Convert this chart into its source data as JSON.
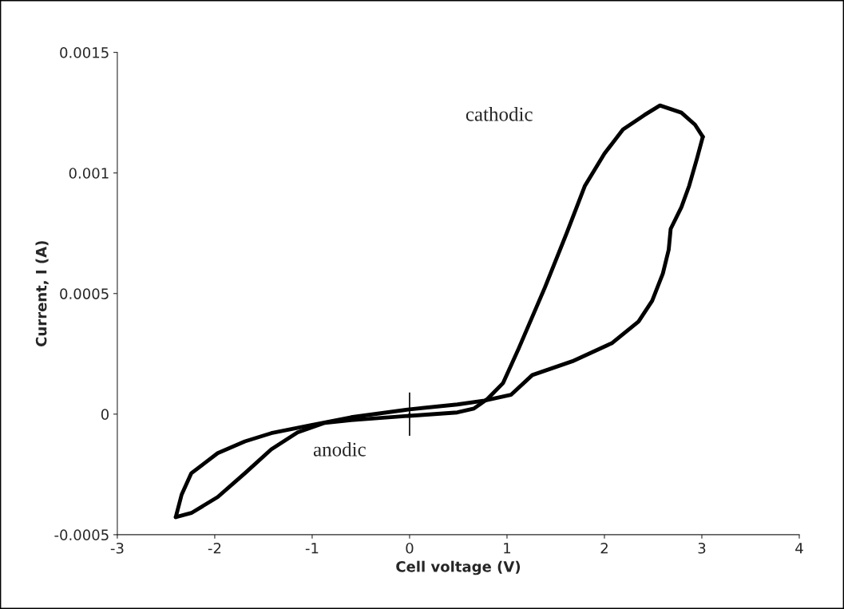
{
  "chart_data": {
    "type": "line",
    "xlabel": "Cell voltage (V)",
    "ylabel": "Current, I (A)",
    "xlim": [
      -3,
      4
    ],
    "xticks": [
      -3,
      -2,
      -1,
      0,
      1,
      2,
      3,
      4
    ],
    "ylim": [
      -0.0005,
      0.0015
    ],
    "yticks": [
      {
        "value": -0.0005,
        "label": "-0.0005"
      },
      {
        "value": 0,
        "label": "0"
      },
      {
        "value": 0.0005,
        "label": "0.0005"
      },
      {
        "value": 0.001,
        "label": "0.001"
      },
      {
        "value": 0.0015,
        "label": "0.0015"
      }
    ],
    "grid": false,
    "marker": "none",
    "line_style": "solid",
    "series": [
      {
        "color": "#000000",
        "x": [
          -2.4,
          -2.34,
          -2.24,
          -2.1,
          -1.97,
          -1.69,
          -1.42,
          -1.01,
          -0.6,
          0.0,
          0.49,
          0.77,
          1.04,
          1.26,
          1.67,
          2.08,
          2.35,
          2.49,
          2.6,
          2.66,
          2.68,
          2.79,
          2.87,
          2.95,
          3.01
        ],
        "values": [
          -0.000427,
          -0.000334,
          -0.000245,
          -0.000202,
          -0.000162,
          -0.000113,
          -7.9e-05,
          -4.6e-05,
          -1.3e-05,
          2e-05,
          4e-05,
          5.6e-05,
          8e-05,
          0.000162,
          0.000219,
          0.000295,
          0.000384,
          0.00047,
          0.000583,
          0.000682,
          0.000768,
          0.000858,
          0.000947,
          0.00106,
          0.00115
        ]
      },
      {
        "color": "#000000",
        "x": [
          3.01,
          2.93,
          2.79,
          2.57,
          2.41,
          2.19,
          2.0,
          1.8,
          1.61,
          1.39,
          1.12,
          0.96,
          0.8,
          0.66,
          0.49,
          0.0,
          -0.6,
          -0.87,
          -1.15,
          -1.42,
          -1.69,
          -1.97,
          -2.24,
          -2.4
        ],
        "values": [
          0.00115,
          0.0012,
          0.00125,
          0.00128,
          0.00124,
          0.00118,
          0.00108,
          0.000947,
          0.000748,
          0.000526,
          0.000272,
          0.000129,
          6.3e-05,
          2.3e-05,
          7e-06,
          -7e-06,
          -2.5e-05,
          -3.6e-05,
          -7.6e-05,
          -0.000146,
          -0.000245,
          -0.000344,
          -0.00041,
          -0.000427
        ]
      },
      {
        "type": "scatter",
        "color": "#000000",
        "x": [
          0
        ],
        "values": [
          0
        ],
        "errors": [
          9e-05
        ]
      }
    ],
    "annotations": [
      "cathodic",
      "anodic"
    ]
  }
}
